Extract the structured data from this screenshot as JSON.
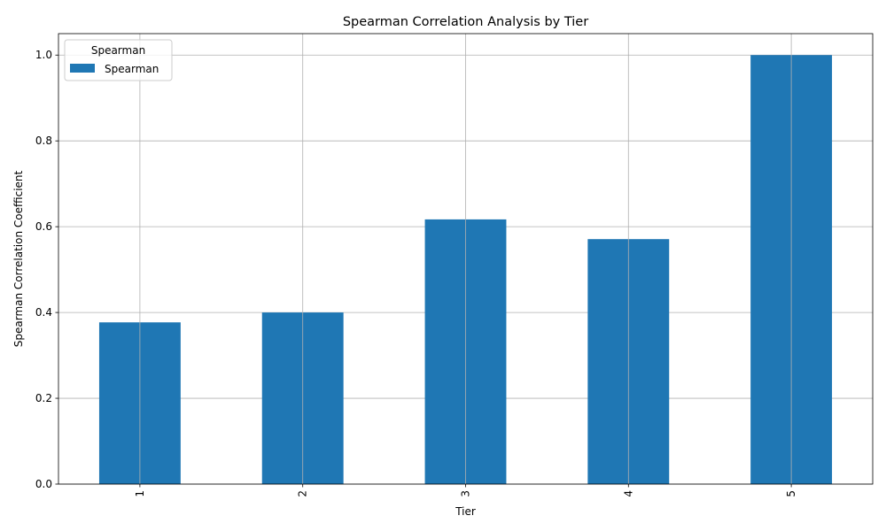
{
  "chart_data": {
    "type": "bar",
    "title": "Spearman Correlation Analysis by Tier",
    "xlabel": "Tier",
    "ylabel": "Spearman Correlation Coefficient",
    "categories": [
      "1",
      "2",
      "3",
      "4",
      "5"
    ],
    "series": [
      {
        "name": "Spearman",
        "values": [
          0.377,
          0.4,
          0.617,
          0.571,
          1.0
        ],
        "color": "#1f77b4"
      }
    ],
    "ylim": [
      0,
      1.05
    ],
    "yticks": [
      "0.0",
      "0.2",
      "0.4",
      "0.6",
      "0.8",
      "1.0"
    ],
    "grid": true,
    "legend": {
      "title": "Spearman",
      "placement": "top-left"
    }
  }
}
